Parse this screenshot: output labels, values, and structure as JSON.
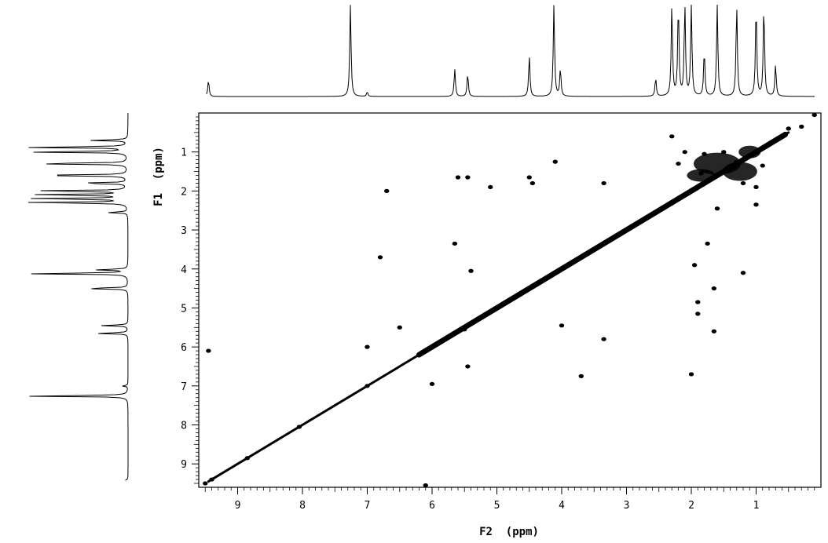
{
  "chart_data": {
    "type": "scatter",
    "subtype": "2D NMR correlation map (COSY-style) with 1D projections",
    "xlabel": "F2  (ppm)",
    "ylabel": "F1  (ppm)",
    "x_axis": {
      "direction": "reversed",
      "xlim": [
        9.6,
        0.0
      ],
      "ticks": [
        9,
        8,
        7,
        6,
        5,
        4,
        3,
        2,
        1
      ]
    },
    "y_axis": {
      "direction": "top-to-bottom increasing",
      "ylim": [
        0.0,
        9.6
      ],
      "ticks": [
        1,
        2,
        3,
        4,
        5,
        6,
        7,
        8,
        9
      ]
    },
    "grid": false,
    "legend": "none",
    "diagonal": {
      "from": [
        9.45,
        9.45
      ],
      "to": [
        0.5,
        0.5
      ]
    },
    "series": [
      {
        "type": "scatter",
        "points": [
          {
            "x": 9.5,
            "y": 9.5
          },
          {
            "x": 9.4,
            "y": 9.4
          },
          {
            "x": 8.05,
            "y": 8.05
          },
          {
            "x": 8.85,
            "y": 8.85
          },
          {
            "x": 9.45,
            "y": 6.1
          },
          {
            "x": 6.1,
            "y": 9.55
          },
          {
            "x": 6.7,
            "y": 2.0
          },
          {
            "x": 6.8,
            "y": 3.7
          },
          {
            "x": 5.6,
            "y": 1.65
          },
          {
            "x": 5.45,
            "y": 1.65
          },
          {
            "x": 5.4,
            "y": 4.05
          },
          {
            "x": 5.1,
            "y": 1.9
          },
          {
            "x": 4.5,
            "y": 1.65
          },
          {
            "x": 4.45,
            "y": 1.8
          },
          {
            "x": 4.1,
            "y": 1.25
          },
          {
            "x": 3.35,
            "y": 1.8
          },
          {
            "x": 5.65,
            "y": 3.35
          },
          {
            "x": 4.05,
            "y": 4.05
          },
          {
            "x": 4.5,
            "y": 4.5
          },
          {
            "x": 5.5,
            "y": 5.55
          },
          {
            "x": 5.75,
            "y": 5.75
          },
          {
            "x": 4.95,
            "y": 4.95
          },
          {
            "x": 3.7,
            "y": 3.7
          },
          {
            "x": 7.0,
            "y": 6.0
          },
          {
            "x": 6.5,
            "y": 5.5
          },
          {
            "x": 4.0,
            "y": 5.45
          },
          {
            "x": 5.45,
            "y": 6.5
          },
          {
            "x": 6.0,
            "y": 6.95
          },
          {
            "x": 3.7,
            "y": 6.75
          },
          {
            "x": 3.35,
            "y": 5.8
          },
          {
            "x": 7.0,
            "y": 7.0
          },
          {
            "x": 2.0,
            "y": 6.7
          },
          {
            "x": 1.65,
            "y": 4.5
          },
          {
            "x": 1.2,
            "y": 4.1
          },
          {
            "x": 1.65,
            "y": 5.6
          },
          {
            "x": 1.9,
            "y": 4.85
          },
          {
            "x": 1.9,
            "y": 5.15
          },
          {
            "x": 1.75,
            "y": 3.35
          },
          {
            "x": 1.95,
            "y": 3.9
          },
          {
            "x": 1.6,
            "y": 2.45
          },
          {
            "x": 1.0,
            "y": 2.35
          },
          {
            "x": 1.8,
            "y": 1.05
          },
          {
            "x": 1.5,
            "y": 1.0
          },
          {
            "x": 1.3,
            "y": 1.25
          },
          {
            "x": 1.2,
            "y": 1.8
          },
          {
            "x": 0.9,
            "y": 1.35
          },
          {
            "x": 2.1,
            "y": 1.0
          },
          {
            "x": 1.0,
            "y": 1.9
          },
          {
            "x": 1.85,
            "y": 1.55
          },
          {
            "x": 2.2,
            "y": 1.3
          },
          {
            "x": 2.3,
            "y": 0.6
          },
          {
            "x": 0.1,
            "y": 0.05
          },
          {
            "x": 0.3,
            "y": 0.35
          },
          {
            "x": 0.5,
            "y": 0.4
          }
        ]
      }
    ],
    "projection_peaks": [
      {
        "ppm": 9.45,
        "height": 0.18
      },
      {
        "ppm": 7.26,
        "height": 1.0
      },
      {
        "ppm": 7.0,
        "height": 0.05
      },
      {
        "ppm": 5.65,
        "height": 0.3
      },
      {
        "ppm": 5.45,
        "height": 0.25
      },
      {
        "ppm": 4.5,
        "height": 0.45
      },
      {
        "ppm": 4.12,
        "height": 1.0
      },
      {
        "ppm": 4.02,
        "height": 0.3
      },
      {
        "ppm": 2.55,
        "height": 0.2
      },
      {
        "ppm": 2.3,
        "height": 1.0
      },
      {
        "ppm": 2.2,
        "height": 1.0
      },
      {
        "ppm": 2.1,
        "height": 1.0
      },
      {
        "ppm": 2.0,
        "height": 1.0
      },
      {
        "ppm": 1.8,
        "height": 0.5
      },
      {
        "ppm": 1.6,
        "height": 1.0
      },
      {
        "ppm": 1.3,
        "height": 1.0
      },
      {
        "ppm": 1.0,
        "height": 1.0
      },
      {
        "ppm": 0.88,
        "height": 1.0
      },
      {
        "ppm": 0.7,
        "height": 0.35
      }
    ]
  }
}
